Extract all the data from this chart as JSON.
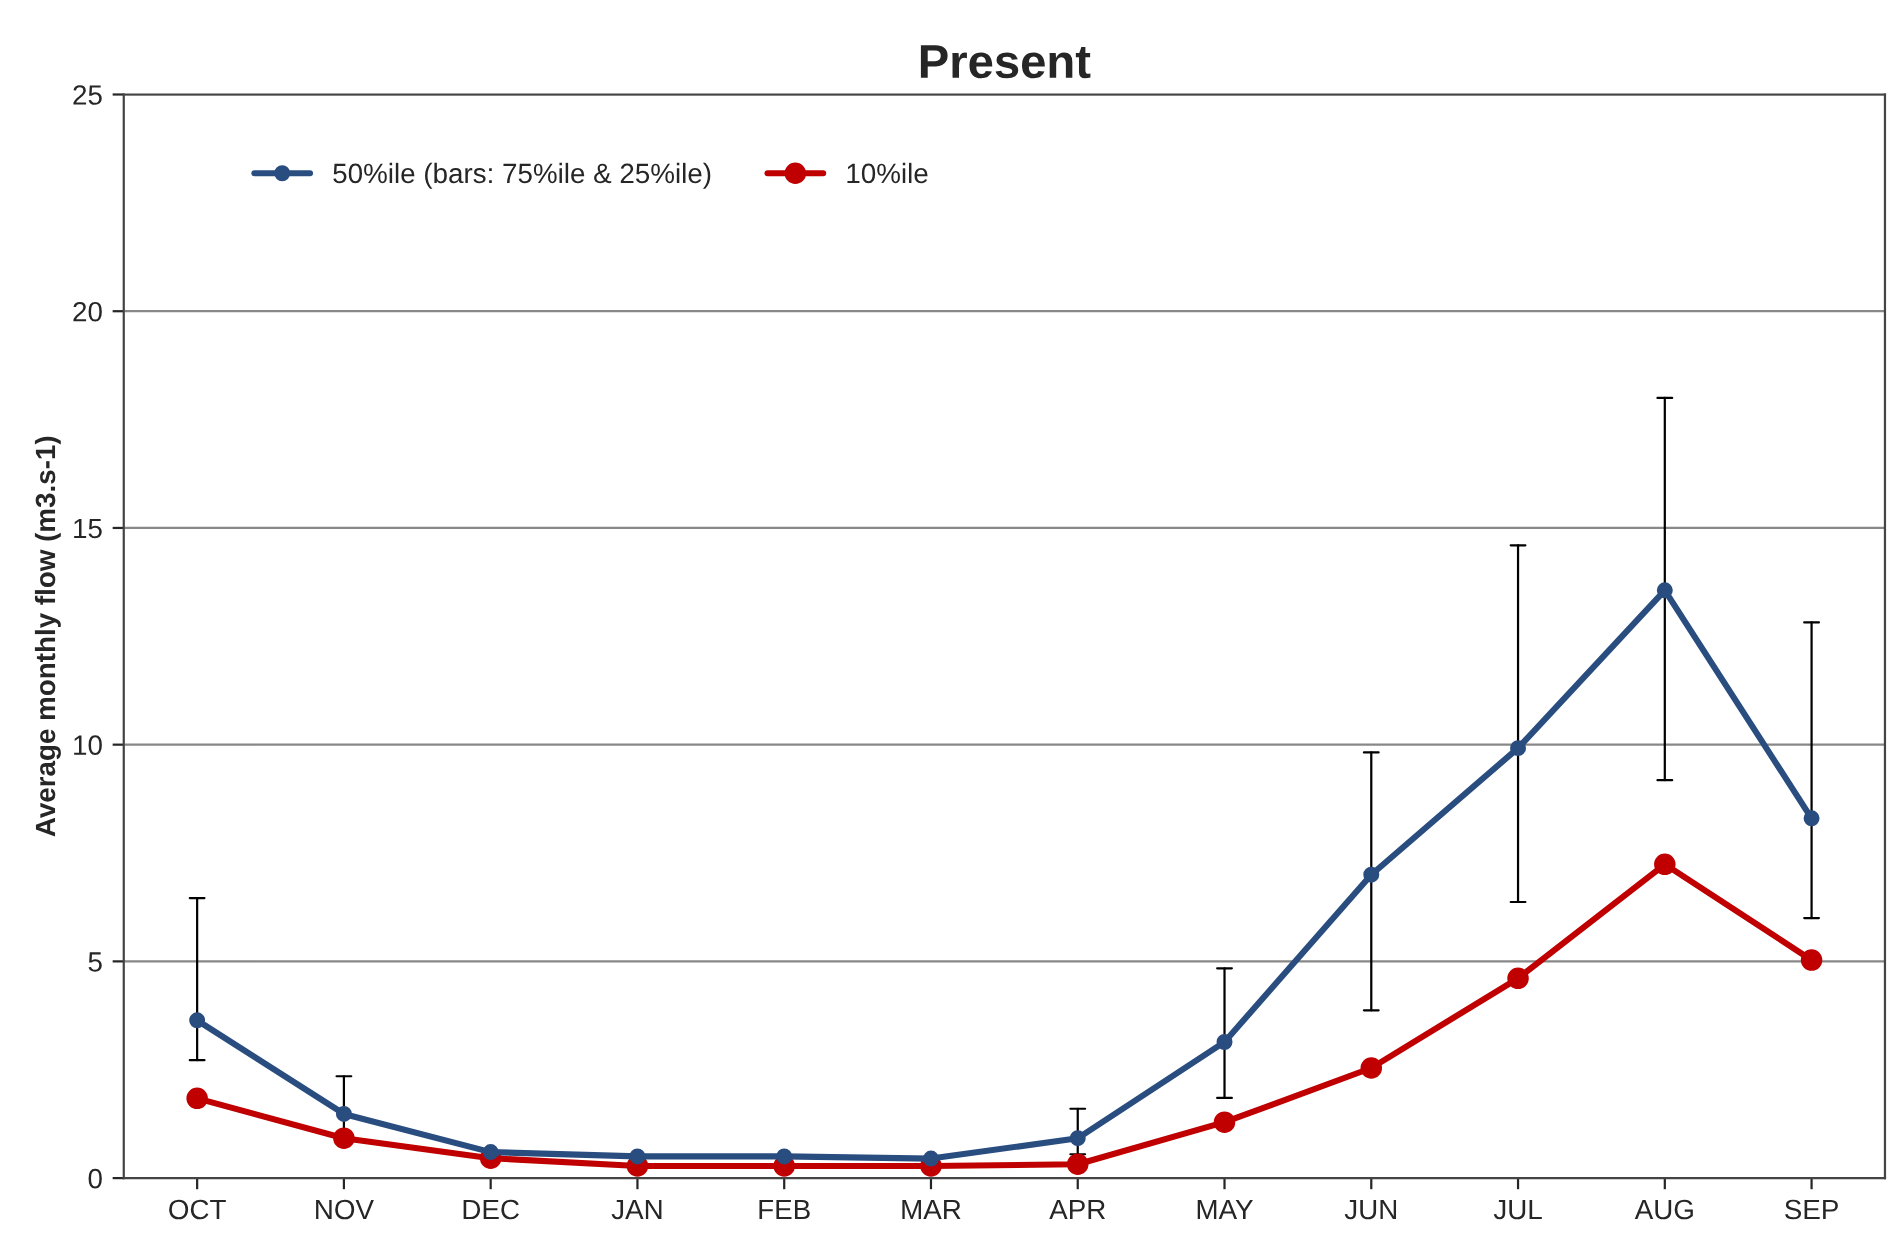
{
  "chart_data": {
    "type": "line",
    "title": "Present",
    "ylabel": "Average monthly flow (m3.s-1)",
    "categories": [
      "OCT",
      "NOV",
      "DEC",
      "JAN",
      "FEB",
      "MAR",
      "APR",
      "MAY",
      "JUN",
      "JUL",
      "AUG",
      "SEP"
    ],
    "series": [
      {
        "name": "50%ile (bars: 75%ile & 25%ile)",
        "color": "#2a4d80",
        "values": [
          3.64,
          1.48,
          0.6,
          0.5,
          0.5,
          0.45,
          0.92,
          3.14,
          7.0,
          9.92,
          13.56,
          8.3
        ],
        "errors": [
          [
            2.72,
            6.46
          ],
          [
            1.0,
            2.35
          ],
          null,
          null,
          null,
          null,
          [
            0.55,
            1.6
          ],
          [
            1.85,
            4.84
          ],
          [
            3.87,
            9.82
          ],
          [
            6.37,
            14.6
          ],
          [
            9.18,
            18.0
          ],
          [
            6.0,
            12.82
          ]
        ]
      },
      {
        "name": "10%ile",
        "color": "#c00000",
        "values": [
          1.84,
          0.92,
          0.46,
          0.28,
          0.28,
          0.28,
          0.32,
          1.29,
          2.54,
          4.61,
          7.24,
          5.03
        ]
      }
    ],
    "ylim": [
      0,
      25
    ],
    "yticks": [
      0,
      5,
      10,
      15,
      20,
      25
    ],
    "grid": "y",
    "legend": "top left",
    "marker": "circle",
    "line_style": "solid"
  }
}
